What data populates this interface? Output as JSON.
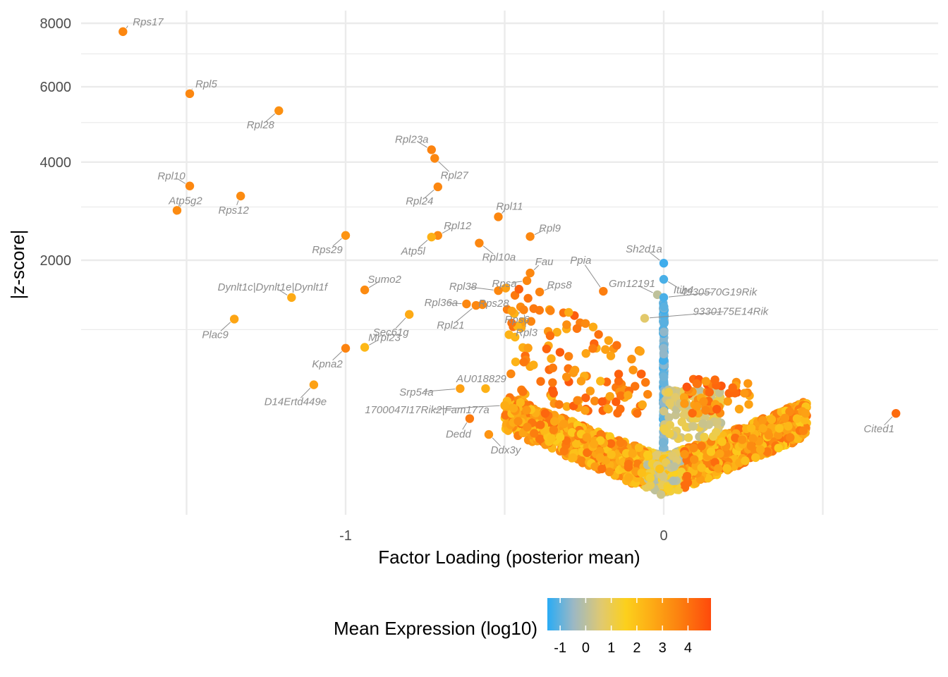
{
  "chart_data": {
    "type": "scatter",
    "title": "",
    "xlabel": "Factor Loading (posterior mean)",
    "ylabel": "|z-score|",
    "y_scale": "sqrt",
    "xlim": [
      -1.84,
      0.86
    ],
    "ylim": [
      0,
      8450
    ],
    "x_ticks": [
      {
        "value": -1,
        "label": "-1"
      },
      {
        "value": 0,
        "label": "0"
      }
    ],
    "y_ticks": [
      {
        "value": 2000,
        "label": "2000"
      },
      {
        "value": 4000,
        "label": "4000"
      },
      {
        "value": 6000,
        "label": "6000"
      },
      {
        "value": 8000,
        "label": "8000"
      }
    ],
    "grid": true,
    "legend": {
      "title": "Mean Expression (log10)",
      "position": "bottom",
      "range": [
        -1.5,
        4.9
      ],
      "ticks": [
        {
          "value": -1,
          "label": "-1"
        },
        {
          "value": 0,
          "label": "0"
        },
        {
          "value": 1,
          "label": "1"
        },
        {
          "value": 2,
          "label": "2"
        },
        {
          "value": 3,
          "label": "3"
        },
        {
          "value": 4,
          "label": "4"
        }
      ],
      "colors": [
        "#29abf5",
        "#9cb8c4",
        "#e0c970",
        "#fcd01c",
        "#fdab15",
        "#fc7d0f",
        "#fe4a0c"
      ]
    },
    "labeled_points": [
      {
        "name": "Rps17",
        "x": -1.7,
        "y": 7720,
        "expr": 3.6
      },
      {
        "name": "Rpl5",
        "x": -1.49,
        "y": 5800,
        "expr": 3.6
      },
      {
        "name": "Rpl28",
        "x": -1.21,
        "y": 5320,
        "expr": 3.4
      },
      {
        "name": "Rpl23a",
        "x": -0.73,
        "y": 4300,
        "expr": 3.7
      },
      {
        "name": "Rpl27",
        "x": -0.72,
        "y": 4090,
        "expr": 3.6
      },
      {
        "name": "Rpl10",
        "x": -1.49,
        "y": 3450,
        "expr": 3.6
      },
      {
        "name": "Rpl24",
        "x": -0.71,
        "y": 3430,
        "expr": 3.6
      },
      {
        "name": "Rps12",
        "x": -1.33,
        "y": 3230,
        "expr": 3.5
      },
      {
        "name": "Atp5g2",
        "x": -1.53,
        "y": 2930,
        "expr": 3.5
      },
      {
        "name": "Rpl11",
        "x": -0.52,
        "y": 2800,
        "expr": 3.6
      },
      {
        "name": "Rpl9",
        "x": -0.42,
        "y": 2420,
        "expr": 3.6
      },
      {
        "name": "Rpl12",
        "x": -0.71,
        "y": 2440,
        "expr": 3.5
      },
      {
        "name": "Atp5l",
        "x": -0.73,
        "y": 2410,
        "expr": 2.6
      },
      {
        "name": "Rps29",
        "x": -1.0,
        "y": 2440,
        "expr": 3.3
      },
      {
        "name": "Rpl10a",
        "x": -0.58,
        "y": 2300,
        "expr": 3.6
      },
      {
        "name": "Sh2d1a",
        "x": 0.0,
        "y": 1950,
        "expr": -1.3
      },
      {
        "name": "Fau",
        "x": -0.42,
        "y": 1790,
        "expr": 3.6
      },
      {
        "name": "Itih4",
        "x": 0.0,
        "y": 1690,
        "expr": -1.2
      },
      {
        "name": "Rpsa",
        "x": -0.43,
        "y": 1670,
        "expr": 3.6
      },
      {
        "name": "Rps8",
        "x": -0.39,
        "y": 1500,
        "expr": 3.7
      },
      {
        "name": "Rpl38",
        "x": -0.52,
        "y": 1520,
        "expr": 3.6
      },
      {
        "name": "Sumo2",
        "x": -0.94,
        "y": 1530,
        "expr": 3.5
      },
      {
        "name": "Ppia",
        "x": -0.19,
        "y": 1510,
        "expr": 3.8
      },
      {
        "name": "Gm12191",
        "x": -0.02,
        "y": 1460,
        "expr": 0.1
      },
      {
        "name": "Dynlt1c|Dynlt1e|Dynlt1f",
        "x": -1.17,
        "y": 1420,
        "expr": 2.8
      },
      {
        "name": "4930570G19Rik",
        "x": 0.0,
        "y": 1420,
        "expr": -1.2
      },
      {
        "name": "Rpl36a",
        "x": -0.62,
        "y": 1330,
        "expr": 3.6
      },
      {
        "name": "Rps28",
        "x": -0.57,
        "y": 1320,
        "expr": 3.5
      },
      {
        "name": "Rps6",
        "x": -0.45,
        "y": 1290,
        "expr": 3.5
      },
      {
        "name": "Rpl3",
        "x": -0.44,
        "y": 1250,
        "expr": 3.7
      },
      {
        "name": "Sec61g",
        "x": -0.8,
        "y": 1190,
        "expr": 2.8
      },
      {
        "name": "9330175E14Rik",
        "x": -0.06,
        "y": 1140,
        "expr": 0.7
      },
      {
        "name": "Plac9",
        "x": -1.35,
        "y": 1130,
        "expr": 2.9
      },
      {
        "name": "Rpl21",
        "x": -0.59,
        "y": 1310,
        "expr": 3.6
      },
      {
        "name": "Mrpl23",
        "x": -0.94,
        "y": 800,
        "expr": 2.4
      },
      {
        "name": "Kpna2",
        "x": -1.0,
        "y": 790,
        "expr": 3.7
      },
      {
        "name": "AU018829",
        "x": -0.56,
        "y": 420,
        "expr": 2.6
      },
      {
        "name": "Srp54a",
        "x": -0.64,
        "y": 420,
        "expr": 3.0
      },
      {
        "name": "D14Ertd449e",
        "x": -1.1,
        "y": 450,
        "expr": 3.0
      },
      {
        "name": "1700047I17Rik2|Fam177a",
        "x": -0.5,
        "y": 300,
        "expr": 2.7
      },
      {
        "name": "Dedd",
        "x": -0.61,
        "y": 220,
        "expr": 3.9
      },
      {
        "name": "Ddx3y",
        "x": -0.55,
        "y": 140,
        "expr": 3.3
      },
      {
        "name": "Cited1",
        "x": 0.73,
        "y": 250,
        "expr": 4.2
      }
    ],
    "bulk_points_note": "plus several thousand unlabeled genes clustered near x=0 with low |z-score|"
  }
}
